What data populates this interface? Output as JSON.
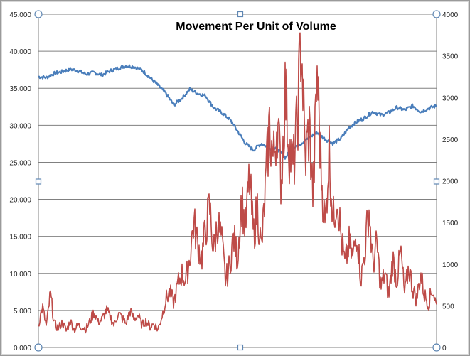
{
  "chart_data": {
    "type": "line",
    "title": "Movement Per Unit of Volume",
    "xlabel": "",
    "ylabel": "",
    "y_left": {
      "lim": [
        0,
        45
      ],
      "ticks": [
        0,
        5,
        10,
        15,
        20,
        25,
        30,
        35,
        40,
        45
      ],
      "tick_labels": [
        "0.000",
        "5.000",
        "10.000",
        "15.000",
        "20.000",
        "25.000",
        "30.000",
        "35.000",
        "40.000",
        "45.000"
      ]
    },
    "y_right": {
      "lim": [
        0,
        4000
      ],
      "ticks": [
        0,
        500,
        1000,
        1500,
        2000,
        2500,
        3000,
        3500,
        4000
      ],
      "tick_labels": [
        "0",
        "500",
        "1000",
        "1500",
        "2000",
        "2500",
        "3000",
        "3500",
        "4000"
      ]
    },
    "x_range": [
      0,
      100
    ],
    "grid": true,
    "legend": "none",
    "series": [
      {
        "color": "#4a7ebb",
        "axis": "right",
        "x": [
          0,
          2,
          4,
          6,
          8,
          10,
          12,
          14,
          16,
          18,
          20,
          22,
          24,
          26,
          28,
          30,
          32,
          34,
          36,
          38,
          40,
          42,
          44,
          46,
          48,
          50,
          52,
          54,
          56,
          58,
          60,
          62,
          64,
          66,
          68,
          70,
          72,
          74,
          76,
          78,
          80,
          82,
          84,
          86,
          88,
          90,
          92,
          94,
          96,
          98,
          100
        ],
        "values": [
          3250,
          3240,
          3290,
          3310,
          3340,
          3320,
          3280,
          3300,
          3270,
          3320,
          3350,
          3380,
          3370,
          3330,
          3240,
          3150,
          3050,
          2910,
          2990,
          3100,
          3050,
          3020,
          2880,
          2820,
          2740,
          2600,
          2450,
          2370,
          2450,
          2390,
          2380,
          2280,
          2400,
          2450,
          2520,
          2580,
          2500,
          2450,
          2510,
          2640,
          2710,
          2760,
          2830,
          2790,
          2820,
          2880,
          2850,
          2900,
          2830,
          2870,
          2900
        ]
      },
      {
        "color": "#be4b48",
        "axis": "left",
        "x": [
          0,
          1,
          2,
          3,
          4,
          5,
          6,
          7,
          8,
          9,
          10,
          11,
          12,
          13,
          14,
          15,
          16,
          17,
          18,
          19,
          20,
          21,
          22,
          23,
          24,
          25,
          26,
          27,
          28,
          29,
          30,
          31,
          32,
          33,
          34,
          35,
          36,
          37,
          38,
          39,
          40,
          41,
          42,
          43,
          44,
          45,
          46,
          47,
          48,
          49,
          50,
          51,
          52,
          53,
          54,
          55,
          56,
          57,
          58,
          59,
          60,
          61,
          62,
          63,
          64,
          65,
          66,
          67,
          68,
          69,
          70,
          71,
          72,
          73,
          74,
          75,
          76,
          77,
          78,
          79,
          80,
          81,
          82,
          83,
          84,
          85,
          86,
          87,
          88,
          89,
          90,
          91,
          92,
          93,
          94,
          95,
          96,
          97,
          98,
          99,
          100
        ],
        "values": [
          3.0,
          5.5,
          2.8,
          7.2,
          3.2,
          2.6,
          3.4,
          2.2,
          3.6,
          2.4,
          3.0,
          2.8,
          2.5,
          3.6,
          4.8,
          3.4,
          3.8,
          5.0,
          4.2,
          3.0,
          4.6,
          4.0,
          3.2,
          5.0,
          3.8,
          4.4,
          3.0,
          3.6,
          2.8,
          3.2,
          2.4,
          4.2,
          6.5,
          7.5,
          6.0,
          8.5,
          10.0,
          9.0,
          12.0,
          17.0,
          14.0,
          12.0,
          16.0,
          19.0,
          13.0,
          17.0,
          14.5,
          9.0,
          11.0,
          15.0,
          12.0,
          20.0,
          16.0,
          23.0,
          15.0,
          19.0,
          13.0,
          21.0,
          30.0,
          25.0,
          31.0,
          22.0,
          35.0,
          27.0,
          24.0,
          30.0,
          42.5,
          25.0,
          30.0,
          20.0,
          37.5,
          24.0,
          16.0,
          27.0,
          17.0,
          21.0,
          15.0,
          11.0,
          14.0,
          12.0,
          16.0,
          9.0,
          13.0,
          19.0,
          11.0,
          14.0,
          8.0,
          10.0,
          7.0,
          12.0,
          9.0,
          13.0,
          7.0,
          11.0,
          8.0,
          6.5,
          10.0,
          7.0,
          6.0,
          8.0,
          5.5
        ]
      }
    ]
  }
}
